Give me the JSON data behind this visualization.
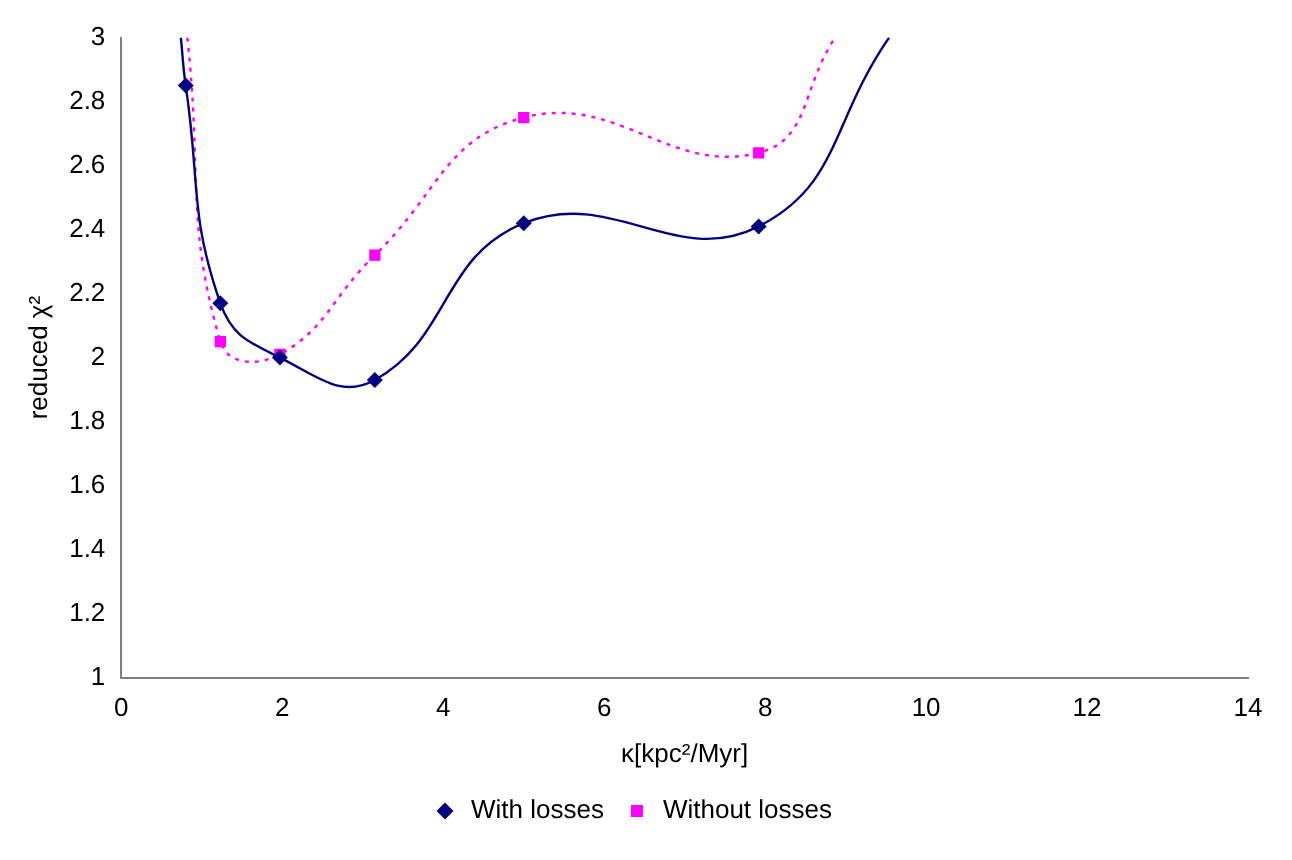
{
  "chart_data": {
    "type": "line",
    "xlabel": "κ[kpc²/Myr]",
    "ylabel": "reduced χ²",
    "xlim": [
      0,
      14
    ],
    "xticks": [
      0,
      2,
      4,
      6,
      8,
      10,
      12,
      14
    ],
    "ylim": [
      1,
      3
    ],
    "yticks": [
      1,
      1.2,
      1.4,
      1.6,
      1.8,
      2,
      2.2,
      2.4,
      2.6,
      2.8,
      3
    ],
    "grid": false,
    "legend": "bottom",
    "series": [
      {
        "name": "With losses",
        "color": "#000080",
        "marker": "diamond",
        "line_style": "solid",
        "x": [
          0.74,
          0.8,
          1.23,
          1.97,
          3.15,
          5.0,
          7.92,
          9.54
        ],
        "values": [
          3,
          2.85,
          2.17,
          2.0,
          1.93,
          2.42,
          2.41,
          3
        ]
      },
      {
        "name": "Without losses",
        "color": "#ff00ff",
        "marker": "square",
        "line_style": "dotted",
        "x": [
          0.82,
          1.23,
          1.97,
          3.15,
          5.0,
          7.92,
          8.87
        ],
        "values": [
          3,
          2.05,
          2.01,
          2.32,
          2.75,
          2.64,
          3
        ]
      }
    ]
  }
}
